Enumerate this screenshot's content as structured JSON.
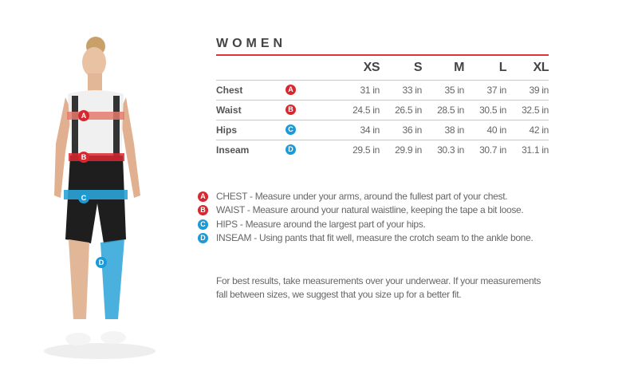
{
  "title": "WOMEN",
  "colors": {
    "accent": "#e0323a",
    "badge_red": "#d8282f",
    "badge_blue": "#1b9ad6"
  },
  "sizes": [
    "XS",
    "S",
    "M",
    "L",
    "XL"
  ],
  "rows": [
    {
      "label": "Chest",
      "badge": "A",
      "badge_color": "red",
      "values": [
        "31 in",
        "33 in",
        "35 in",
        "37 in",
        "39 in"
      ]
    },
    {
      "label": "Waist",
      "badge": "B",
      "badge_color": "red",
      "values": [
        "24.5 in",
        "26.5 in",
        "28.5 in",
        "30.5 in",
        "32.5 in"
      ]
    },
    {
      "label": "Hips",
      "badge": "C",
      "badge_color": "blue",
      "values": [
        "34 in",
        "36 in",
        "38 in",
        "40 in",
        "42 in"
      ]
    },
    {
      "label": "Inseam",
      "badge": "D",
      "badge_color": "blue",
      "values": [
        "29.5 in",
        "29.9 in",
        "30.3 in",
        "30.7 in",
        "31.1 in"
      ]
    }
  ],
  "legend": [
    {
      "badge": "A",
      "text": "CHEST - Measure under your arms, around the fullest part of your chest."
    },
    {
      "badge": "B",
      "text": "WAIST - Measure around your natural waistline, keeping the tape a bit loose."
    },
    {
      "badge": "C",
      "text": "HIPS - Measure around the largest part of your hips."
    },
    {
      "badge": "D",
      "text": "INSEAM - Using pants that fit well, measure the crotch seam to the ankle bone."
    }
  ],
  "note": "For best results, take measurements over your underwear. If your measurements fall between sizes, we suggest that you size up for a better fit.",
  "figure": {
    "badges": [
      "A",
      "B",
      "C",
      "D"
    ]
  }
}
